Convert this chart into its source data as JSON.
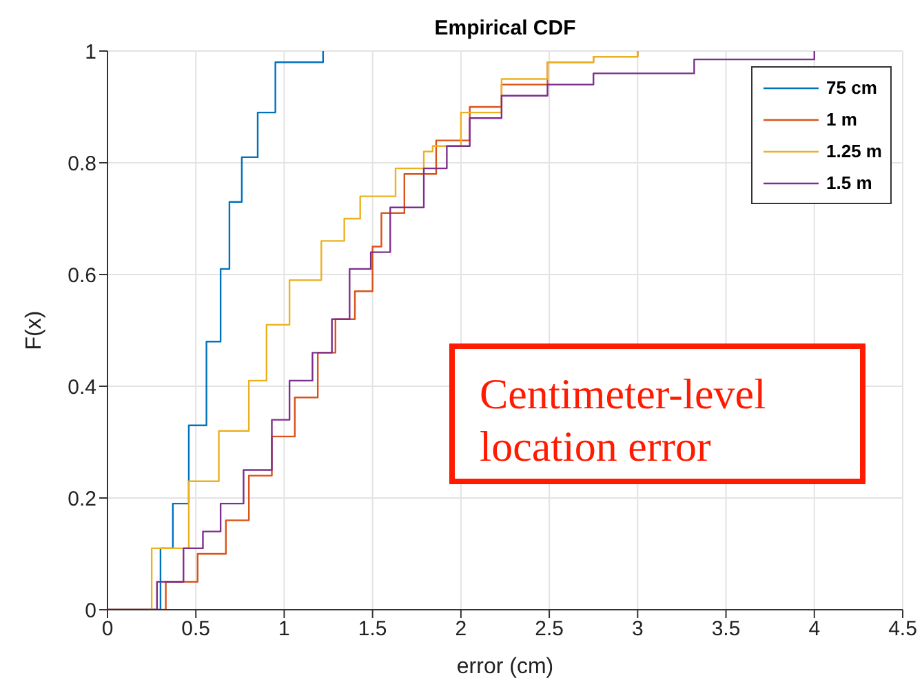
{
  "chart_data": {
    "type": "step",
    "title": "Empirical CDF",
    "xlabel": "error (cm)",
    "ylabel": "F(x)",
    "xlim": [
      0,
      4.5
    ],
    "xticks": [
      0,
      0.5,
      1,
      1.5,
      2,
      2.5,
      3,
      3.5,
      4,
      4.5
    ],
    "ylim": [
      0,
      1
    ],
    "yticks": [
      0,
      0.2,
      0.4,
      0.6,
      0.8,
      1
    ],
    "grid": true,
    "legend": "top right",
    "marker": "none",
    "line_style": "solid",
    "annotations": [
      "Centimeter-level location error"
    ],
    "series": [
      {
        "name": "75 cm",
        "color": "#0072bd",
        "x": [
          0,
          0.02,
          0.3,
          0.37,
          0.46,
          0.56,
          0.64,
          0.69,
          0.76,
          0.85,
          0.95,
          1.21,
          1.22
        ],
        "values": [
          0,
          0,
          0.11,
          0.19,
          0.33,
          0.48,
          0.61,
          0.73,
          0.81,
          0.89,
          0.98,
          0.98,
          1
        ]
      },
      {
        "name": "1 m",
        "color": "#d95319",
        "x": [
          0,
          0.07,
          0.33,
          0.51,
          0.67,
          0.8,
          0.93,
          1.06,
          1.19,
          1.29,
          1.4,
          1.5,
          1.55,
          1.68,
          1.86,
          2.05,
          2.23,
          2.49,
          2.75,
          3.0
        ],
        "values": [
          0,
          0,
          0.05,
          0.1,
          0.16,
          0.24,
          0.31,
          0.38,
          0.46,
          0.52,
          0.57,
          0.65,
          0.71,
          0.78,
          0.84,
          0.9,
          0.94,
          0.98,
          0.99,
          1
        ]
      },
      {
        "name": "1.25 m",
        "color": "#edb120",
        "x": [
          0,
          0.25,
          0.46,
          0.63,
          0.8,
          0.9,
          1.03,
          1.21,
          1.34,
          1.43,
          1.63,
          1.79,
          1.84,
          2.0,
          2.23,
          2.49,
          2.75,
          3.0
        ],
        "values": [
          0,
          0.11,
          0.23,
          0.32,
          0.41,
          0.51,
          0.59,
          0.66,
          0.7,
          0.74,
          0.79,
          0.82,
          0.83,
          0.89,
          0.95,
          0.98,
          0.99,
          1
        ]
      },
      {
        "name": "1.5 m",
        "color": "#7e2f8e",
        "x": [
          0,
          0.09,
          0.28,
          0.43,
          0.54,
          0.64,
          0.77,
          0.93,
          1.03,
          1.16,
          1.27,
          1.37,
          1.49,
          1.6,
          1.79,
          1.92,
          2.05,
          2.23,
          2.49,
          2.75,
          3.32,
          4.0
        ],
        "values": [
          0,
          0,
          0.05,
          0.11,
          0.14,
          0.19,
          0.25,
          0.34,
          0.41,
          0.46,
          0.52,
          0.61,
          0.64,
          0.72,
          0.79,
          0.83,
          0.88,
          0.92,
          0.94,
          0.96,
          0.985,
          1
        ]
      }
    ]
  }
}
